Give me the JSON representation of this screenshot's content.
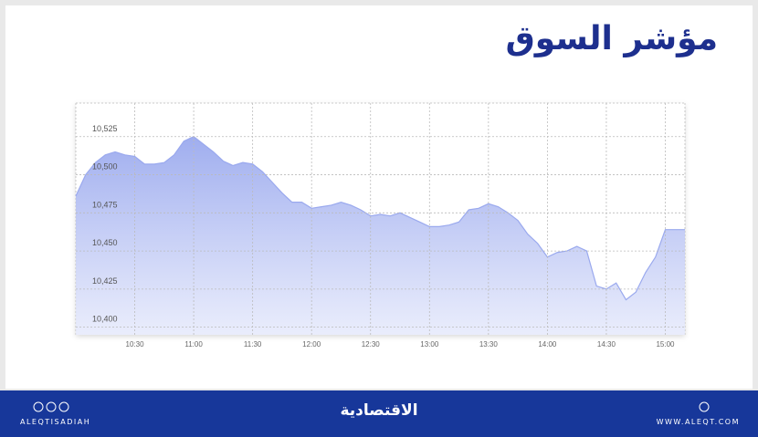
{
  "chart_data": {
    "type": "area",
    "title": "مؤشر السوق",
    "x": [
      600,
      605,
      610,
      615,
      620,
      625,
      630,
      635,
      640,
      645,
      650,
      655,
      660,
      665,
      670,
      675,
      680,
      685,
      690,
      695,
      700,
      705,
      710,
      715,
      720,
      725,
      730,
      735,
      740,
      745,
      750,
      755,
      760,
      765,
      770,
      775,
      780,
      785,
      790,
      795,
      800,
      805,
      810,
      815,
      820,
      825,
      830,
      835,
      840,
      845,
      850,
      855,
      860,
      865,
      870,
      875,
      880,
      885,
      890,
      895,
      900,
      905,
      910
    ],
    "values": [
      10486,
      10500,
      10508,
      10513,
      10515,
      10513,
      10512,
      10507,
      10507,
      10508,
      10513,
      10522,
      10525,
      10520,
      10515,
      10509,
      10506,
      10508,
      10507,
      10502,
      10495,
      10488,
      10482,
      10482,
      10478,
      10479,
      10480,
      10482,
      10480,
      10477,
      10473,
      10474,
      10473,
      10475,
      10472,
      10469,
      10466,
      10466,
      10467,
      10469,
      10477,
      10478,
      10481,
      10479,
      10475,
      10470,
      10461,
      10455,
      10446,
      10449,
      10450,
      10453,
      10450,
      10427,
      10425,
      10429,
      10418,
      10423,
      10436,
      10446,
      10464,
      10464,
      10464
    ],
    "color": "#9aa9ee",
    "xlim": [
      600,
      910
    ],
    "xticks": [
      {
        "value": 630,
        "label": "10:30"
      },
      {
        "value": 660,
        "label": "11:00"
      },
      {
        "value": 690,
        "label": "11:30"
      },
      {
        "value": 720,
        "label": "12:00"
      },
      {
        "value": 750,
        "label": "12:30"
      },
      {
        "value": 780,
        "label": "13:00"
      },
      {
        "value": 810,
        "label": "13:30"
      },
      {
        "value": 840,
        "label": "14:00"
      },
      {
        "value": 870,
        "label": "14:30"
      },
      {
        "value": 900,
        "label": "15:00"
      }
    ],
    "ylim": [
      10395,
      10547
    ],
    "yticks": [
      {
        "value": 10400,
        "label": "10,400"
      },
      {
        "value": 10425,
        "label": "10,425"
      },
      {
        "value": 10450,
        "label": "10,450"
      },
      {
        "value": 10475,
        "label": "10,475"
      },
      {
        "value": 10500,
        "label": "10,500"
      },
      {
        "value": 10525,
        "label": "10,525"
      }
    ],
    "grid": true
  },
  "footer": {
    "handle": "ALEQTISADIAH",
    "brand": "الاقتصادية",
    "website": "WWW.ALEQT.COM"
  }
}
